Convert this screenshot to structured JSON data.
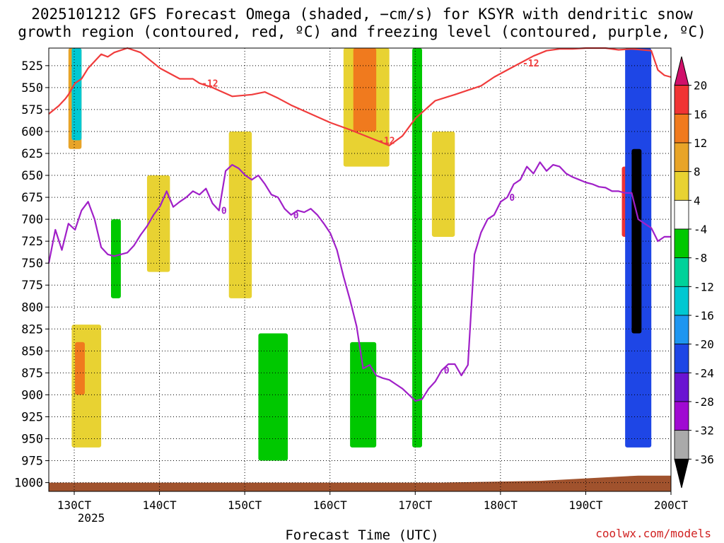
{
  "title_line1": "2025101212 GFS Forecast Omega (shaded, −cm/s) for KSYR with dendritic snow",
  "title_line2": "growth region (contoured, red, ºC) and freezing level (contoured, purple, ºC)",
  "credit": "coolwx.com/models",
  "chart_data": {
    "type": "heatmap",
    "xlabel": "Forecast Time (UTC)",
    "x_ticks": [
      "130CT",
      "140CT",
      "150CT",
      "160CT",
      "170CT",
      "180CT",
      "190CT",
      "200CT"
    ],
    "x_year_label": "2025",
    "x_range": [
      "2025-10-12 12Z",
      "2025-10-20 00Z"
    ],
    "ylabel": "",
    "y_ticks": [
      525,
      550,
      575,
      600,
      625,
      650,
      675,
      700,
      725,
      750,
      775,
      800,
      825,
      850,
      875,
      900,
      925,
      950,
      975,
      1000
    ],
    "y_range": [
      505,
      1010
    ],
    "grid": true,
    "colorbar": {
      "labels": [
        20,
        16,
        12,
        8,
        4,
        -4,
        -8,
        -12,
        -16,
        -20,
        -24,
        -28,
        -32,
        -36
      ],
      "colors": [
        "#d0106a",
        "#f03434",
        "#f07a1e",
        "#e8a428",
        "#e8d232",
        "#ffffff",
        "#00c800",
        "#00d29a",
        "#00c8d2",
        "#1e96f0",
        "#1e46e6",
        "#6a14d2",
        "#a00ad2",
        "#aaaaaa",
        "#000000"
      ]
    },
    "contours": [
      {
        "name": "dendritic growth",
        "color": "#f03c3c",
        "value_label": "-12",
        "points": [
          [
            0,
            580
          ],
          [
            3,
            571
          ],
          [
            5,
            563
          ],
          [
            6,
            558
          ],
          [
            8,
            545
          ],
          [
            10,
            540
          ],
          [
            12,
            528
          ],
          [
            16,
            512
          ],
          [
            18,
            515
          ],
          [
            20,
            510
          ],
          [
            24,
            505
          ],
          [
            28,
            510
          ],
          [
            34,
            528
          ],
          [
            40,
            540
          ],
          [
            44,
            540
          ],
          [
            46,
            545
          ],
          [
            50,
            550
          ],
          [
            56,
            560
          ],
          [
            62,
            558
          ],
          [
            66,
            555
          ],
          [
            70,
            562
          ],
          [
            74,
            570
          ],
          [
            80,
            580
          ],
          [
            86,
            590
          ],
          [
            92,
            598
          ],
          [
            96,
            604
          ],
          [
            100,
            610
          ],
          [
            104,
            616
          ],
          [
            108,
            605
          ],
          [
            112,
            585
          ],
          [
            118,
            565
          ],
          [
            124,
            558
          ],
          [
            128,
            553
          ],
          [
            132,
            548
          ],
          [
            136,
            538
          ],
          [
            140,
            530
          ],
          [
            144,
            522
          ],
          [
            148,
            514
          ],
          [
            152,
            508
          ],
          [
            156,
            506
          ],
          [
            160,
            506
          ],
          [
            164,
            505
          ],
          [
            170,
            505
          ],
          [
            174,
            507
          ],
          [
            178,
            506
          ],
          [
            184,
            508
          ],
          [
            186,
            530
          ],
          [
            188,
            536
          ],
          [
            190,
            538
          ]
        ]
      },
      {
        "name": "freezing level",
        "color": "#a020c8",
        "value_label": "0",
        "points": [
          [
            0,
            750
          ],
          [
            2,
            712
          ],
          [
            4,
            735
          ],
          [
            6,
            705
          ],
          [
            8,
            712
          ],
          [
            10,
            690
          ],
          [
            12,
            680
          ],
          [
            14,
            700
          ],
          [
            16,
            732
          ],
          [
            18,
            740
          ],
          [
            20,
            742
          ],
          [
            22,
            740
          ],
          [
            24,
            738
          ],
          [
            26,
            730
          ],
          [
            28,
            718
          ],
          [
            30,
            708
          ],
          [
            32,
            695
          ],
          [
            34,
            685
          ],
          [
            36,
            668
          ],
          [
            38,
            686
          ],
          [
            40,
            680
          ],
          [
            42,
            675
          ],
          [
            44,
            668
          ],
          [
            46,
            672
          ],
          [
            48,
            665
          ],
          [
            50,
            682
          ],
          [
            52,
            690
          ],
          [
            54,
            645
          ],
          [
            56,
            638
          ],
          [
            58,
            642
          ],
          [
            60,
            650
          ],
          [
            62,
            655
          ],
          [
            64,
            650
          ],
          [
            66,
            660
          ],
          [
            68,
            672
          ],
          [
            70,
            675
          ],
          [
            72,
            688
          ],
          [
            74,
            695
          ],
          [
            76,
            690
          ],
          [
            78,
            692
          ],
          [
            80,
            688
          ],
          [
            82,
            695
          ],
          [
            84,
            705
          ],
          [
            86,
            716
          ],
          [
            88,
            735
          ],
          [
            90,
            765
          ],
          [
            92,
            792
          ],
          [
            94,
            822
          ],
          [
            96,
            870
          ],
          [
            98,
            866
          ],
          [
            100,
            878
          ],
          [
            102,
            881
          ],
          [
            104,
            883
          ],
          [
            106,
            888
          ],
          [
            108,
            893
          ],
          [
            110,
            900
          ],
          [
            112,
            907
          ],
          [
            114,
            905
          ],
          [
            116,
            893
          ],
          [
            118,
            885
          ],
          [
            120,
            872
          ],
          [
            122,
            865
          ],
          [
            124,
            865
          ],
          [
            126,
            878
          ],
          [
            128,
            866
          ],
          [
            130,
            740
          ],
          [
            132,
            715
          ],
          [
            134,
            700
          ],
          [
            136,
            695
          ],
          [
            138,
            680
          ],
          [
            140,
            675
          ],
          [
            142,
            660
          ],
          [
            144,
            655
          ],
          [
            146,
            640
          ],
          [
            148,
            648
          ],
          [
            150,
            635
          ],
          [
            152,
            645
          ],
          [
            154,
            638
          ],
          [
            156,
            640
          ],
          [
            158,
            648
          ],
          [
            160,
            652
          ],
          [
            162,
            655
          ],
          [
            164,
            658
          ],
          [
            166,
            660
          ],
          [
            168,
            663
          ],
          [
            170,
            664
          ],
          [
            172,
            668
          ],
          [
            174,
            668
          ],
          [
            176,
            670
          ],
          [
            178,
            670
          ],
          [
            180,
            700
          ],
          [
            182,
            705
          ],
          [
            184,
            710
          ],
          [
            186,
            725
          ],
          [
            188,
            720
          ],
          [
            190,
            720
          ]
        ]
      }
    ],
    "shaded_regions": [
      {
        "value_level": 8,
        "t0": 6,
        "t1": 10,
        "p0": 505,
        "p1": 620
      },
      {
        "value_level": -12,
        "t0": 7,
        "t1": 10,
        "p0": 505,
        "p1": 610
      },
      {
        "value_level": 4,
        "t0": 7,
        "t1": 16,
        "p0": 820,
        "p1": 960
      },
      {
        "value_level": 12,
        "t0": 8,
        "t1": 11,
        "p0": 840,
        "p1": 900
      },
      {
        "value_level": -4,
        "t0": 19,
        "t1": 22,
        "p0": 700,
        "p1": 790
      },
      {
        "value_level": 4,
        "t0": 30,
        "t1": 37,
        "p0": 650,
        "p1": 760
      },
      {
        "value_level": 4,
        "t0": 55,
        "t1": 62,
        "p0": 600,
        "p1": 790
      },
      {
        "value_level": -4,
        "t0": 64,
        "t1": 73,
        "p0": 830,
        "p1": 975
      },
      {
        "value_level": 4,
        "t0": 90,
        "t1": 104,
        "p0": 505,
        "p1": 640
      },
      {
        "value_level": 12,
        "t0": 93,
        "t1": 100,
        "p0": 505,
        "p1": 600
      },
      {
        "value_level": -4,
        "t0": 92,
        "t1": 100,
        "p0": 840,
        "p1": 960
      },
      {
        "value_level": -4,
        "t0": 111,
        "t1": 114,
        "p0": 505,
        "p1": 960
      },
      {
        "value_level": 4,
        "t0": 117,
        "t1": 124,
        "p0": 600,
        "p1": 720
      },
      {
        "value_level": 16,
        "t0": 175,
        "t1": 177,
        "p0": 640,
        "p1": 720
      },
      {
        "value_level": -20,
        "t0": 176,
        "t1": 184,
        "p0": 505,
        "p1": 960
      },
      {
        "value_level": -36,
        "t0": 178,
        "t1": 181,
        "p0": 620,
        "p1": 830
      }
    ],
    "terrain": {
      "color": "#a0522d",
      "points": [
        [
          0,
          1000
        ],
        [
          60,
          1000
        ],
        [
          120,
          1000
        ],
        [
          150,
          998
        ],
        [
          160,
          996
        ],
        [
          170,
          994
        ],
        [
          180,
          992
        ],
        [
          190,
          992
        ]
      ]
    }
  }
}
